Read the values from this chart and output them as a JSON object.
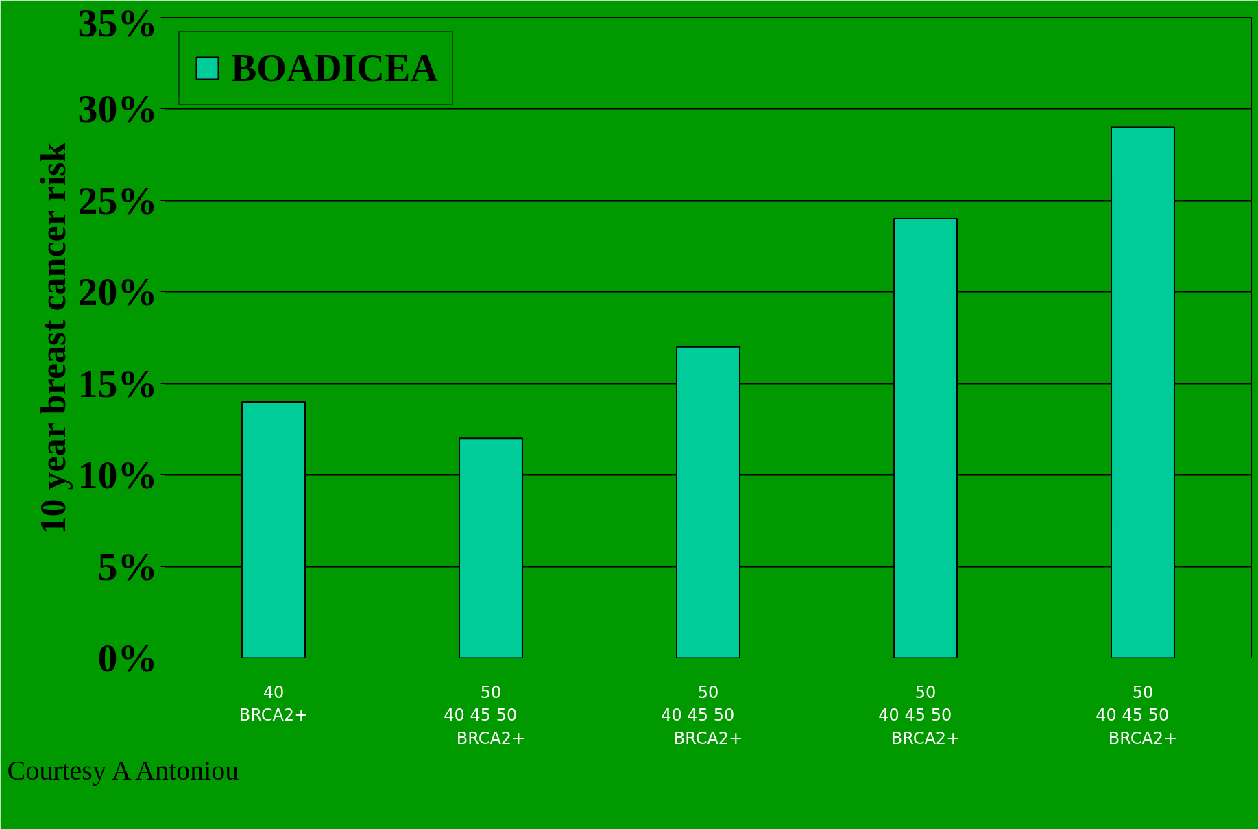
{
  "chart_data": {
    "type": "bar",
    "ylabel": "10 year breast cancer risk",
    "categories": [
      "40\nBRCA2+",
      "50\n40   45   50\nBRCA2+",
      "50\n40   45   50\nBRCA2+",
      "50\n40   45   50\nBRCA2+",
      "50\n40   45   50\nBRCA2+"
    ],
    "series": [
      {
        "name": "BOADICEA",
        "color": "#00cc99",
        "values": [
          14,
          12,
          17,
          24,
          29
        ]
      }
    ],
    "ylim": [
      0,
      35
    ],
    "yticks": [
      {
        "value": 0,
        "label": "0%"
      },
      {
        "value": 5,
        "label": "5%"
      },
      {
        "value": 10,
        "label": "10%"
      },
      {
        "value": 15,
        "label": "15%"
      },
      {
        "value": 20,
        "label": "20%"
      },
      {
        "value": 25,
        "label": "25%"
      },
      {
        "value": 30,
        "label": "30%"
      },
      {
        "value": 35,
        "label": "35%"
      }
    ],
    "grid": "y",
    "legend": "top left",
    "annotations": [
      "Courtesy A Antoniou"
    ]
  }
}
